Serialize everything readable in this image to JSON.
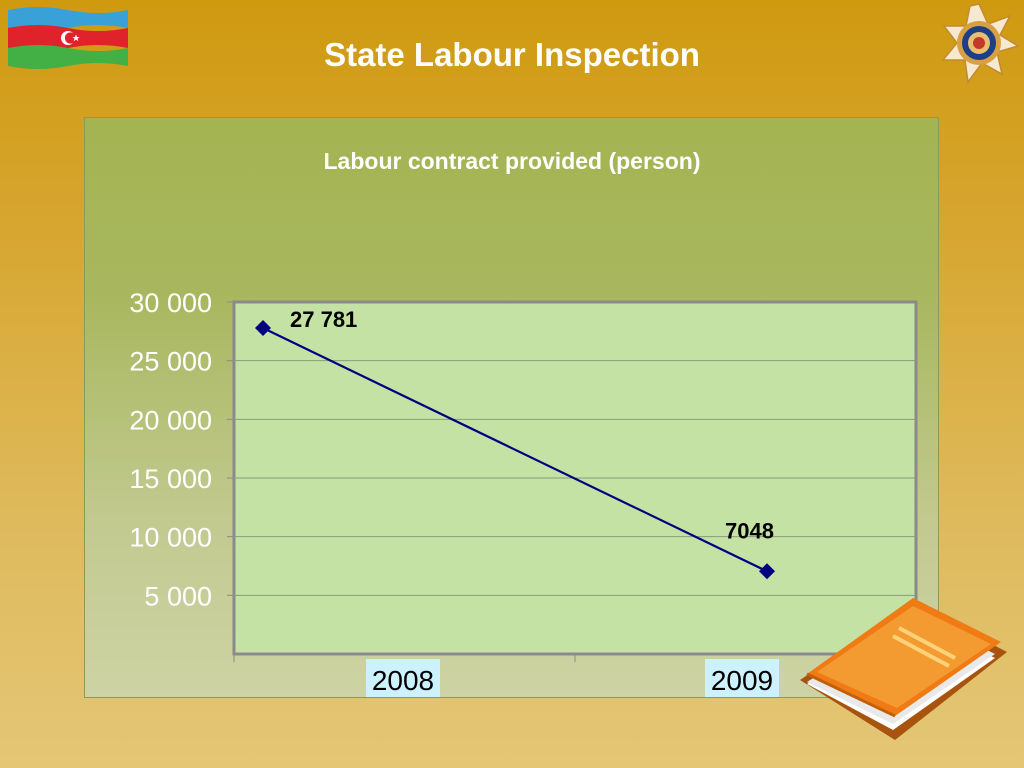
{
  "slide": {
    "title": "State Labour Inspection"
  },
  "decorations": {
    "flag": "azerbaijan-flag",
    "emblem": "state-labour-inspection-emblem",
    "book": "orange-book-icon"
  },
  "colors": {
    "background": "#d4a227",
    "plot_fill": "#c4e2a4",
    "series": "#000080"
  },
  "chart_data": {
    "type": "line",
    "title": "Labour contract provided (person)",
    "xlabel": "",
    "ylabel": "",
    "categories": [
      "2008",
      "2009"
    ],
    "series": [
      {
        "values": [
          27781,
          7048
        ],
        "data_labels": [
          "27 781",
          "7048"
        ]
      }
    ],
    "ylim": [
      0,
      30000
    ],
    "yticks": [
      5000,
      10000,
      15000,
      20000,
      25000,
      30000
    ],
    "ytick_labels": [
      "5 000",
      "10 000",
      "15 000",
      "20 000",
      "25 000",
      "30 000"
    ],
    "grid": true,
    "legend": "none"
  }
}
